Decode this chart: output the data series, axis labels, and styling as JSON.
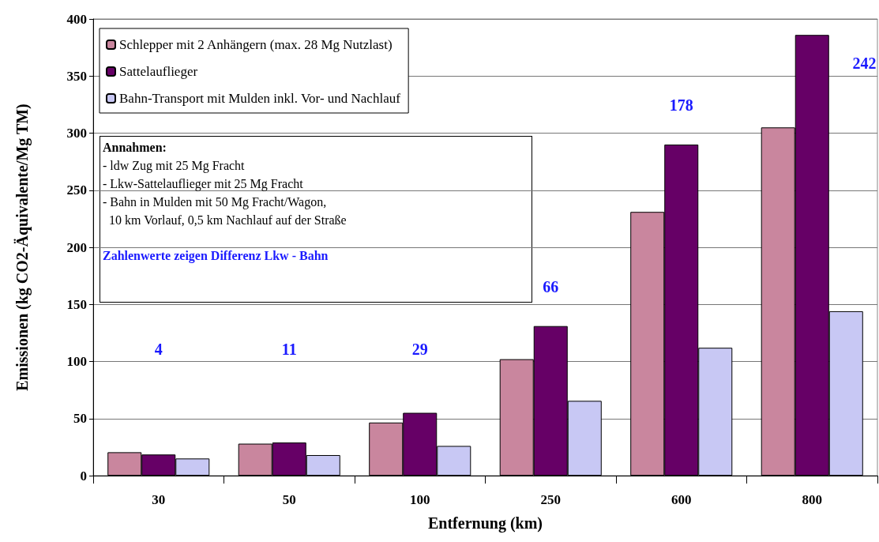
{
  "chart_data": {
    "type": "bar",
    "xlabel": "Entfernung (km)",
    "ylabel": "Emissionen (kg CO2-Äquivalente/Mg TM)",
    "categories": [
      "30",
      "50",
      "100",
      "250",
      "600",
      "800"
    ],
    "series": [
      {
        "name": "Schlepper mit 2 Anhängern (max. 28 Mg Nutzlast)",
        "color": "#c9869e",
        "values": [
          20.5,
          28,
          46.5,
          102,
          231,
          305
        ]
      },
      {
        "name": "Sattelauflieger",
        "color": "#660066",
        "values": [
          18.5,
          29,
          55,
          131,
          290,
          386
        ]
      },
      {
        "name": "Bahn-Transport mit Mulden inkl. Vor- und Nachlauf",
        "color": "#c8c8f4",
        "values": [
          15,
          18,
          26,
          65.5,
          112,
          144
        ]
      }
    ],
    "ylim": [
      0,
      400
    ],
    "yticks": [
      0,
      50,
      100,
      150,
      200,
      250,
      300,
      350,
      400
    ],
    "grid": "y",
    "legend": "top left",
    "annotations": [
      "Annahmen:\n- ldw Zug mit 25 Mg Fracht\n- Lkw-Sattelauflieger mit 25 Mg Fracht\n- Bahn in Mulden mit 50 Mg Fracht/Wagon,\n  10 km Vorlauf, 0,5 km Nachlauf auf der Straße",
      "Zahlenwerte zeigen Differenz Lkw - Bahn",
      "4",
      "11",
      "29",
      "66",
      "178",
      "242"
    ]
  }
}
